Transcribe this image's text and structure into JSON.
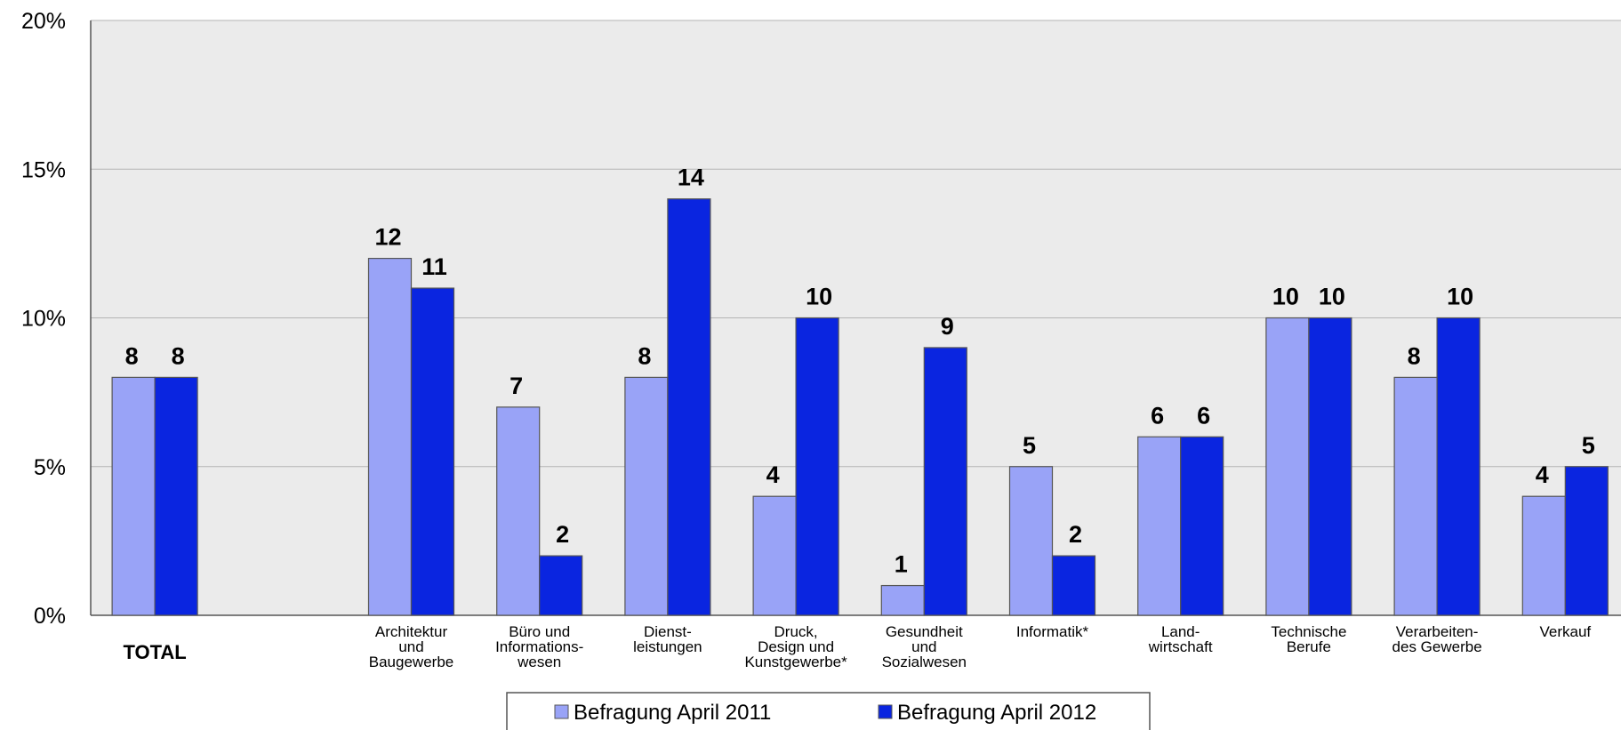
{
  "chart_data": {
    "type": "bar",
    "categories": [
      "TOTAL",
      null,
      "Architektur\nund\nBaugewerbe",
      "Büro und\nInformations-\nwesen",
      "Dienst-\nleistungen",
      "Druck,\nDesign und\nKunstgewerbe*",
      "Gesundheit\nund\nSozialwesen",
      "Informatik*",
      "Land-\nwirtschaft",
      "Technische\nBerufe",
      "Verarbeiten-\ndes Gewerbe",
      "Verkauf"
    ],
    "series": [
      {
        "name": "Befragung April 2011",
        "color": "#99a3f7",
        "values": [
          8,
          null,
          12,
          7,
          8,
          4,
          1,
          5,
          6,
          10,
          8,
          4
        ]
      },
      {
        "name": "Befragung April 2012",
        "color": "#0a25e0",
        "values": [
          8,
          null,
          11,
          2,
          14,
          10,
          9,
          2,
          6,
          10,
          10,
          5
        ]
      }
    ],
    "ylim": [
      0,
      20
    ],
    "yticks": [
      {
        "value": 0,
        "label": "0%"
      },
      {
        "value": 5,
        "label": "5%"
      },
      {
        "value": 10,
        "label": "10%"
      },
      {
        "value": 15,
        "label": "15%"
      },
      {
        "value": 20,
        "label": "20%"
      }
    ],
    "grid": true,
    "legend": "bottom"
  }
}
